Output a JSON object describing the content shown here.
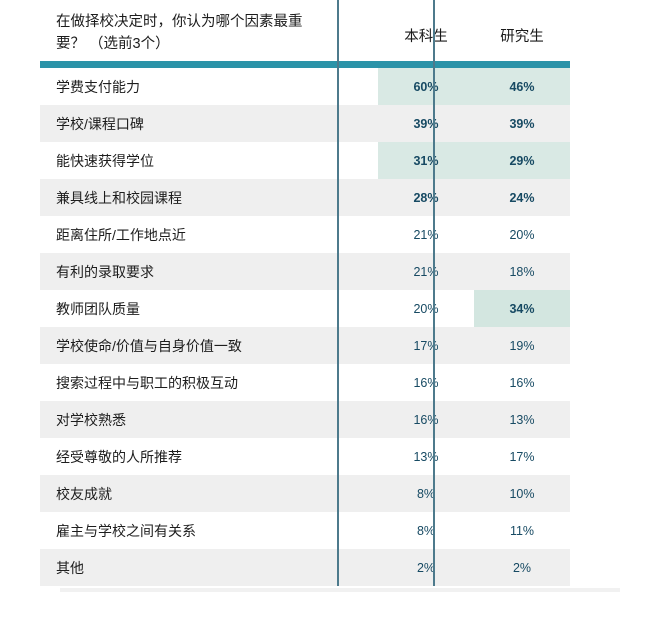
{
  "header": {
    "question_lines": [
      "在做择校决定时，你认为哪个因素最重",
      "要？ （选前3个）"
    ],
    "col1": "本科生",
    "col2": "研究生"
  },
  "colors": {
    "teal_bar": "#2b93a8",
    "column_divider": "#4d7a8c",
    "highlight_light": "#d9e9e4",
    "highlight_dark": "#bddbd4",
    "highlight_grad_only": "#d3e6e0",
    "stripe_gray": "#efefef",
    "value_text": "#174a63"
  },
  "chart_data": {
    "type": "table",
    "title": "在做择校决定时，你认为哪个因素最重要？ （选前3个）",
    "columns": [
      "本科生",
      "研究生"
    ],
    "unit": "%",
    "rows": [
      {
        "label": "学费支付能力",
        "undergrad": 60,
        "grad": 46,
        "highlight": "both"
      },
      {
        "label": "学校/课程口碑",
        "undergrad": 39,
        "grad": 39,
        "highlight": "both"
      },
      {
        "label": "能快速获得学位",
        "undergrad": 31,
        "grad": 29,
        "highlight": "both"
      },
      {
        "label": "兼具线上和校园课程",
        "undergrad": 28,
        "grad": 24,
        "highlight": "both"
      },
      {
        "label": "距离住所/工作地点近",
        "undergrad": 21,
        "grad": 20,
        "highlight": "none"
      },
      {
        "label": "有利的录取要求",
        "undergrad": 21,
        "grad": 18,
        "highlight": "none"
      },
      {
        "label": "教师团队质量",
        "undergrad": 20,
        "grad": 34,
        "highlight": "grad"
      },
      {
        "label": "学校使命/价值与自身价值一致",
        "undergrad": 17,
        "grad": 19,
        "highlight": "none"
      },
      {
        "label": "搜索过程中与职工的积极互动",
        "undergrad": 16,
        "grad": 16,
        "highlight": "none"
      },
      {
        "label": "对学校熟悉",
        "undergrad": 16,
        "grad": 13,
        "highlight": "none"
      },
      {
        "label": "经受尊敬的人所推荐",
        "undergrad": 13,
        "grad": 17,
        "highlight": "none"
      },
      {
        "label": "校友成就",
        "undergrad": 8,
        "grad": 10,
        "highlight": "none"
      },
      {
        "label": "雇主与学校之间有关系",
        "undergrad": 8,
        "grad": 11,
        "highlight": "none"
      },
      {
        "label": "其他",
        "undergrad": 2,
        "grad": 2,
        "highlight": "none"
      }
    ]
  }
}
